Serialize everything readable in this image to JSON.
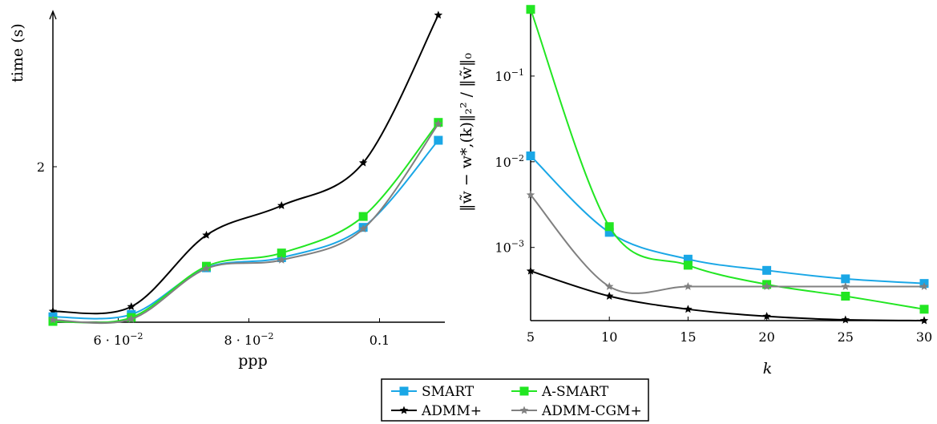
{
  "colors": {
    "SMART": "#1aa7e6",
    "A-SMART": "#22e622",
    "ADMM+": "#000000",
    "ADMM-CGM+": "#808080"
  },
  "chart_data": [
    {
      "type": "line",
      "xlabel": "ppp",
      "ylabel": "time (s)",
      "xlim": [
        0.05,
        0.11
      ],
      "ylim": [
        0,
        4.0
      ],
      "xticks": [
        {
          "value": 0.06,
          "label": "6 · 10",
          "sup": "−2"
        },
        {
          "value": 0.08,
          "label": "8 · 10",
          "sup": "−2"
        },
        {
          "value": 0.1,
          "label": "0.1",
          "sup": ""
        }
      ],
      "yticks": [
        {
          "value": 2,
          "label": "2"
        }
      ],
      "x": [
        0.05,
        0.062,
        0.0735,
        0.085,
        0.0975,
        0.109
      ],
      "series": [
        {
          "name": "ADMM+",
          "marker": "star",
          "values": [
            0.14,
            0.2,
            1.12,
            1.5,
            2.05,
            3.95
          ]
        },
        {
          "name": "SMART",
          "marker": "square",
          "values": [
            0.07,
            0.1,
            0.7,
            0.83,
            1.22,
            2.34
          ]
        },
        {
          "name": "A-SMART",
          "marker": "square",
          "values": [
            0.01,
            0.06,
            0.72,
            0.89,
            1.36,
            2.57
          ]
        },
        {
          "name": "ADMM-CGM+",
          "marker": "star",
          "values": [
            0.03,
            0.04,
            0.69,
            0.8,
            1.2,
            2.55
          ]
        }
      ]
    },
    {
      "type": "line",
      "xlabel": "k",
      "ylabel": "‖w̃ − w*,(k)‖₂² / ‖w̃‖₀",
      "xlim": [
        5,
        30
      ],
      "ylim": [
        0.00014,
        0.65
      ],
      "yscale": "log",
      "xticks": [
        {
          "value": 5,
          "label": "5"
        },
        {
          "value": 10,
          "label": "10"
        },
        {
          "value": 15,
          "label": "15"
        },
        {
          "value": 20,
          "label": "20"
        },
        {
          "value": 25,
          "label": "25"
        },
        {
          "value": 30,
          "label": "30"
        }
      ],
      "yticks": [
        {
          "value": 0.1,
          "label": "10",
          "sup": "−1"
        },
        {
          "value": 0.01,
          "label": "10",
          "sup": "−2"
        },
        {
          "value": 0.001,
          "label": "10",
          "sup": "−3"
        }
      ],
      "x": [
        5,
        10,
        15,
        20,
        25,
        30
      ],
      "series": [
        {
          "name": "SMART",
          "marker": "square",
          "values": [
            0.0117,
            0.0015,
            0.00073,
            0.00054,
            0.00043,
            0.00038
          ]
        },
        {
          "name": "A-SMART",
          "marker": "square",
          "values": [
            0.6,
            0.00175,
            0.00062,
            0.00037,
            0.00027,
            0.00019
          ]
        },
        {
          "name": "ADMM+",
          "marker": "star",
          "values": [
            0.00053,
            0.00027,
            0.00019,
            0.000157,
            0.000143,
            0.00014
          ]
        },
        {
          "name": "ADMM-CGM+",
          "marker": "star",
          "values": [
            0.0041,
            0.00035,
            0.00035,
            0.00035,
            0.00035,
            0.00035
          ]
        }
      ]
    }
  ],
  "legend": {
    "rows": [
      [
        "SMART",
        "A-SMART"
      ],
      [
        "ADMM+",
        "ADMM-CGM+"
      ]
    ]
  }
}
